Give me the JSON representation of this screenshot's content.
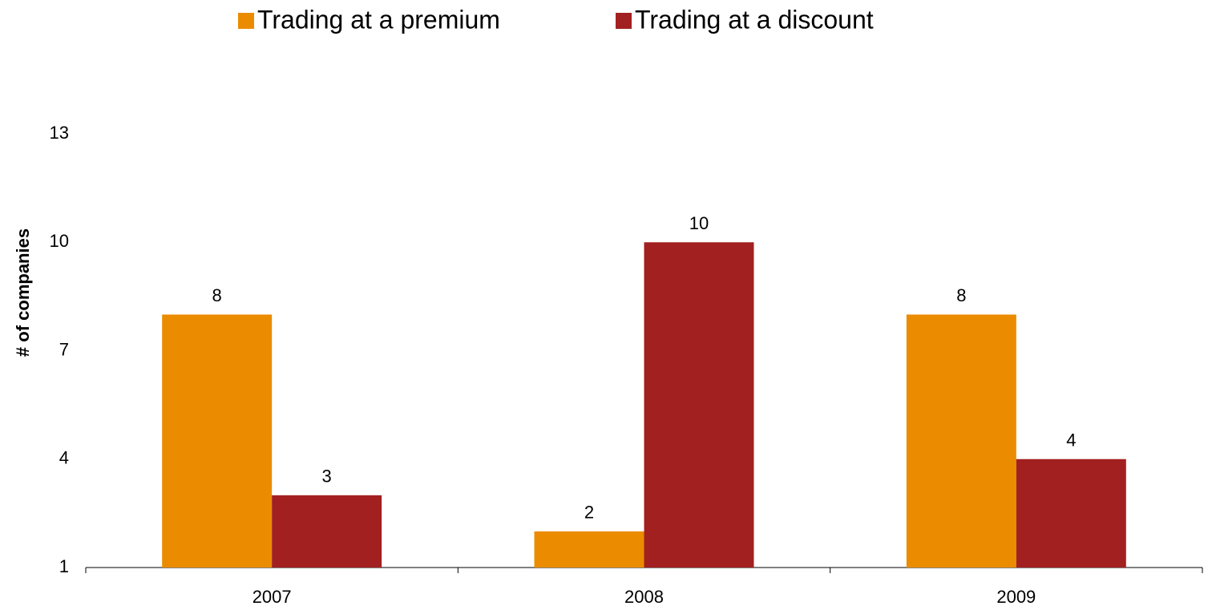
{
  "chart_data": {
    "type": "bar",
    "categories": [
      "2007",
      "2008",
      "2009"
    ],
    "series": [
      {
        "name": "Trading at a premium",
        "color": "#eb8c00",
        "values": [
          8,
          2,
          8
        ]
      },
      {
        "name": "Trading at a discount",
        "color": "#a32020",
        "values": [
          3,
          10,
          4
        ]
      }
    ],
    "y_label": "# of companies",
    "ylim": [
      1,
      13
    ],
    "yticks": [
      1,
      4,
      7,
      10,
      13
    ],
    "grid": false,
    "legend": "top"
  }
}
